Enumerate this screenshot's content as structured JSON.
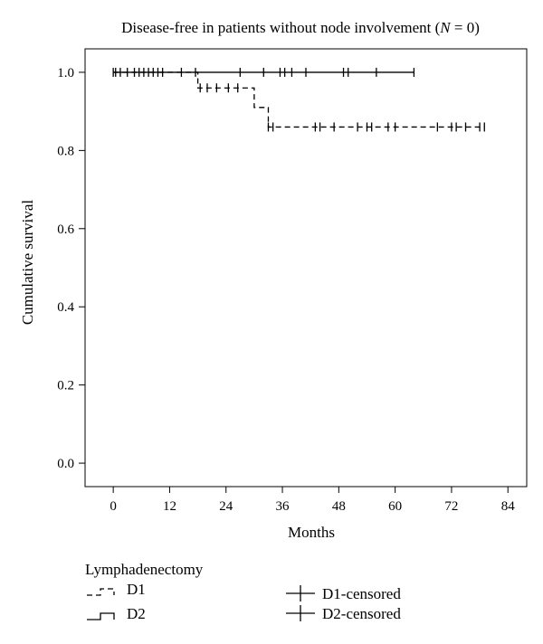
{
  "chart_data": {
    "type": "line",
    "title_prefix": "Disease-free in patients without node involvement (",
    "title_var": "N",
    "title_suffix": " = 0)",
    "xlabel": "Months",
    "ylabel": "Cumulative survival",
    "xlim": [
      -6,
      88
    ],
    "ylim": [
      -0.06,
      1.06
    ],
    "xticks": [
      0,
      12,
      24,
      36,
      48,
      60,
      72,
      84
    ],
    "yticks": [
      "0.0",
      "0.2",
      "0.4",
      "0.6",
      "0.8",
      "1.0"
    ],
    "grid": false,
    "series": [
      {
        "name": "D1",
        "style": "dashed",
        "steps": [
          [
            0,
            1.0
          ],
          [
            18,
            0.96
          ],
          [
            30,
            0.91
          ],
          [
            33,
            0.86
          ],
          [
            79,
            0.86
          ]
        ],
        "censored": [
          18.5,
          20,
          22,
          24.5,
          26.5,
          33,
          34,
          43,
          44,
          47,
          52,
          54,
          55,
          58.5,
          60,
          69,
          72,
          73,
          75,
          78,
          79
        ]
      },
      {
        "name": "D2",
        "style": "solid",
        "steps": [
          [
            0,
            1.0
          ],
          [
            64,
            1.0
          ]
        ],
        "censored": [
          0,
          0.5,
          1.5,
          3,
          4.5,
          5.5,
          6.5,
          7.5,
          8.5,
          9.5,
          10.5,
          14.5,
          17.5,
          27,
          32,
          35.5,
          36.5,
          38,
          41,
          49,
          50,
          56,
          64
        ]
      }
    ]
  },
  "legend": {
    "title": "Lymphadenectomy",
    "placement": "bottom",
    "items": [
      {
        "kind": "line",
        "style": "dashed",
        "label": "D1"
      },
      {
        "kind": "line",
        "style": "solid",
        "label": "D2"
      },
      {
        "kind": "censor",
        "label": "D1-censored"
      },
      {
        "kind": "censor",
        "label": "D2-censored"
      }
    ]
  }
}
